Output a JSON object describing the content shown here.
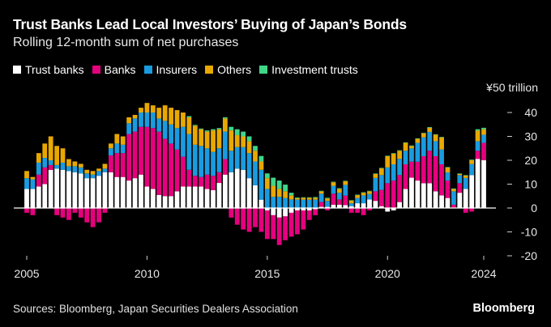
{
  "chart_data": {
    "type": "bar",
    "stacked": true,
    "title": "Trust Banks Lead Local Investors’ Buying of Japan’s Bonds",
    "subtitle": "Rolling 12-month sum of net purchases",
    "unit_label": "¥50 trillion",
    "ylim": [
      -20,
      50
    ],
    "y_ticks": [
      {
        "value": 40,
        "label": "40"
      },
      {
        "value": 30,
        "label": "30"
      },
      {
        "value": 20,
        "label": "20"
      },
      {
        "value": 10,
        "label": "10"
      },
      {
        "value": 0,
        "label": "0"
      },
      {
        "value": -10,
        "label": "-10"
      },
      {
        "value": -20,
        "label": "-20"
      }
    ],
    "x_ticks": [
      {
        "year": 2005,
        "label": "2005"
      },
      {
        "year": 2010,
        "label": "2010"
      },
      {
        "year": 2015,
        "label": "2015"
      },
      {
        "year": 2020,
        "label": "2020"
      },
      {
        "year": 2024,
        "label": "2024"
      }
    ],
    "x_start": 2005.0,
    "x_step": 0.25,
    "legend_position": "top-left",
    "series": [
      {
        "name": "Trust banks",
        "color": "#ffffff",
        "values": [
          8,
          8,
          9,
          10,
          16,
          16.5,
          16,
          15.5,
          15,
          14.5,
          12.5,
          12.5,
          13.5,
          15,
          15,
          13,
          13,
          11.5,
          12.5,
          14,
          9,
          8,
          5.5,
          5,
          5,
          7,
          9,
          9,
          9,
          9,
          8,
          7.5,
          10.5,
          14,
          15,
          16.5,
          16,
          12.5,
          9.5,
          3.5,
          -1,
          -3,
          -4,
          -3.5,
          -2,
          -1,
          -1,
          -1,
          -0.5,
          0.5,
          0.5,
          1.4,
          1.4,
          1.2,
          0.8,
          2,
          2,
          3.6,
          3,
          0.8,
          -1.5,
          -1,
          2.5,
          8,
          12.7,
          11.5,
          10.4,
          10.4,
          7,
          5.3,
          4.2,
          0,
          6.4,
          8,
          13.8,
          20.6,
          20
        ]
      },
      {
        "name": "Banks",
        "color": "#e5007e",
        "values": [
          -2,
          -3,
          5,
          7,
          2,
          -3,
          -4,
          -5,
          -2,
          -4,
          -6,
          -8,
          -6,
          -2,
          7,
          10,
          10,
          19.5,
          19.5,
          20,
          25,
          25.5,
          26.5,
          24,
          22,
          17.5,
          12.5,
          7,
          4.5,
          4,
          6,
          6,
          4.5,
          6.5,
          -4,
          -7,
          -9,
          -10,
          -8,
          -10,
          -12,
          -10,
          -11.5,
          -10,
          -10,
          -10,
          -8,
          -4,
          -2.5,
          2,
          -1,
          4.6,
          2.2,
          4,
          -2,
          -2,
          -3,
          -1,
          4,
          6.8,
          10.4,
          11.5,
          11.3,
          10.3,
          6.7,
          7.9,
          11.3,
          13.6,
          14.7,
          13,
          7.3,
          1.4,
          4,
          -2,
          -1.5,
          3.4,
          7.3
        ]
      },
      {
        "name": "Insurers",
        "color": "#1a9be0",
        "values": [
          4.5,
          4,
          5,
          4,
          2,
          1.5,
          3,
          2,
          2.5,
          2.5,
          2,
          1.5,
          2,
          1.5,
          3,
          4,
          3.5,
          4.5,
          5.5,
          6,
          6,
          6.5,
          5.5,
          7.5,
          8,
          9,
          12.5,
          15,
          13,
          13,
          11,
          10,
          10,
          11.5,
          9,
          9,
          9.5,
          10.5,
          10,
          12.5,
          8,
          4.7,
          4.7,
          4.2,
          3.6,
          3.5,
          3.5,
          3.5,
          3.5,
          3.5,
          2.5,
          3.3,
          2.8,
          4.5,
          1.2,
          2.2,
          3.3,
          2.3,
          5.6,
          6.2,
          6.6,
          6.8,
          6.8,
          5.7,
          5.6,
          7.9,
          7.9,
          7.9,
          6.3,
          6.2,
          3.4,
          5.6,
          3.4,
          4.6,
          4.6,
          4,
          3.4
        ]
      },
      {
        "name": "Others",
        "color": "#e8a800",
        "values": [
          3,
          1,
          4,
          6,
          10,
          8,
          6,
          3,
          2,
          1.5,
          1.5,
          1.5,
          1,
          2,
          2,
          4,
          3.5,
          2.5,
          1.5,
          2,
          4,
          3,
          4.5,
          6.5,
          7,
          7.5,
          6,
          7,
          8,
          7,
          7,
          9,
          8,
          5.5,
          8.5,
          5,
          4.5,
          5,
          4.5,
          3.5,
          4.5,
          4.6,
          3.3,
          2.8,
          1.7,
          0.6,
          0.8,
          0.8,
          0.8,
          1,
          1,
          1.5,
          1.6,
          1.5,
          1.1,
          1.2,
          1.1,
          1.1,
          1.7,
          2.8,
          4.7,
          4.5,
          3.4,
          3.3,
          1,
          1.7,
          1.7,
          1.7,
          2.7,
          5.1,
          2.1,
          1,
          0.5,
          1,
          1.7,
          4.4,
          2.3
        ]
      },
      {
        "name": "Investment trusts",
        "color": "#3fd68a",
        "values": [
          0,
          0,
          0,
          0,
          0,
          0,
          0,
          0,
          0,
          0,
          0,
          0,
          0,
          0,
          0,
          0,
          0,
          0,
          0,
          0,
          0,
          0,
          0,
          0,
          0,
          0,
          0,
          0.5,
          0.3,
          0.3,
          0.5,
          0.5,
          0.5,
          0.5,
          1.5,
          2.5,
          2,
          2,
          2,
          2.3,
          2,
          3.4,
          3.5,
          2.8,
          1.1,
          0.3,
          0.2,
          0.2,
          0.3,
          0.2,
          0.3,
          0.2,
          0.3,
          0.2,
          0.2,
          0.2,
          0.2,
          0.2,
          0.2,
          0.2,
          0.2,
          0.2,
          0.2,
          0.2,
          0.2,
          0.2,
          0.2,
          0.3,
          0.2,
          0.2,
          0.2,
          0.2,
          0.2,
          0.2,
          0.2,
          0.6,
          0.6
        ]
      }
    ]
  },
  "footer": {
    "source": "Sources: Bloomberg, Japan Securities Dealers Association",
    "brand": "Bloomberg"
  }
}
